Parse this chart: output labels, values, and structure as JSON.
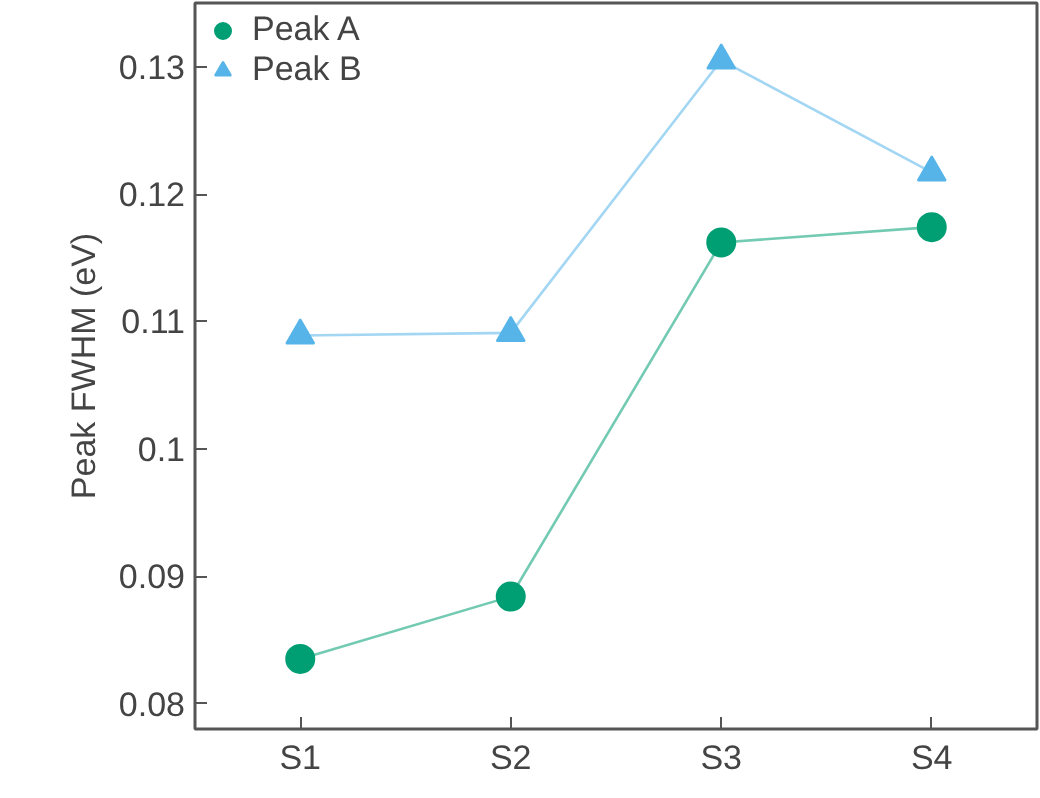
{
  "chart_data": {
    "type": "line",
    "ylabel": "Peak FWHM (eV)",
    "categories": [
      "S1",
      "S2",
      "S3",
      "S4"
    ],
    "series": [
      {
        "name": "Peak A",
        "color": "#009e73",
        "marker": "circle",
        "values": [
          0.0835,
          0.0884,
          0.1162,
          0.1174
        ]
      },
      {
        "name": "Peak B",
        "color": "#56b4e9",
        "marker": "triangle",
        "values": [
          0.1089,
          0.1091,
          0.1305,
          0.1217
        ]
      }
    ],
    "ylim": [
      0.078,
      0.135
    ],
    "yticks": [
      0.08,
      0.09,
      0.1,
      0.11,
      0.12,
      0.13
    ],
    "grid": false,
    "legend": "top left",
    "line_style": "solid"
  }
}
